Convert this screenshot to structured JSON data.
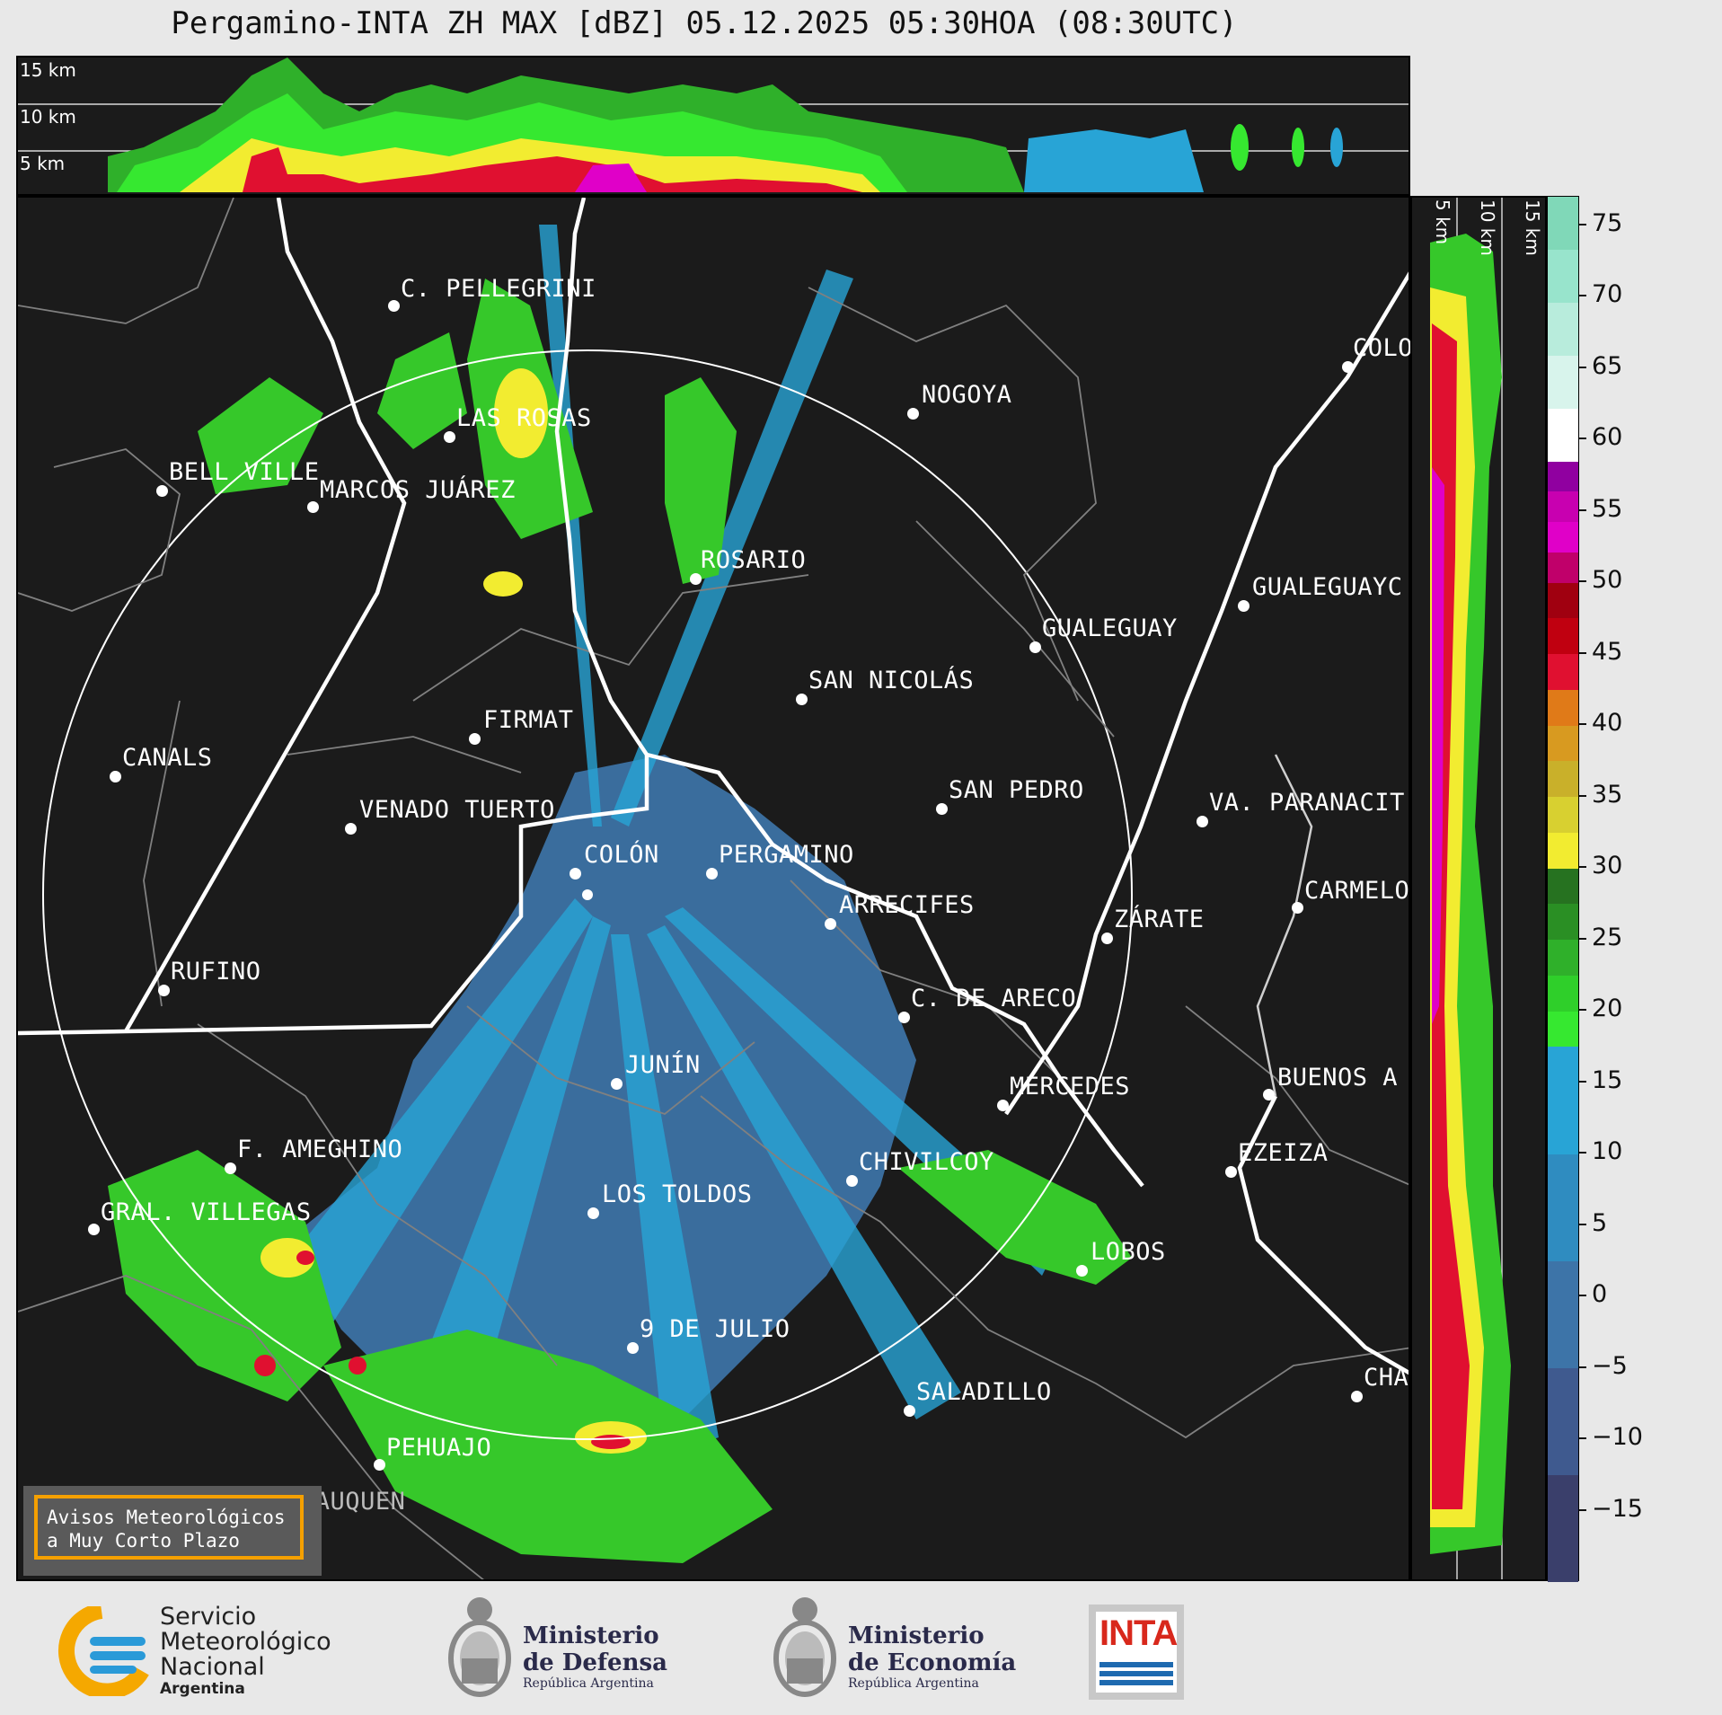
{
  "title": "Pergamino-INTA ZH MAX [dBZ] 05.12.2025 05:30HOA (08:30UTC)",
  "top_panel": {
    "altitude_labels": [
      "15 km",
      "10 km",
      "5 km"
    ]
  },
  "side_panel": {
    "altitude_labels": [
      "5 km",
      "10 km",
      "15 km"
    ]
  },
  "map": {
    "cities": [
      {
        "name": "C. PELLEGRINI"
      },
      {
        "name": "LAS ROSAS"
      },
      {
        "name": "BELL VILLE"
      },
      {
        "name": "MARCOS JUÁREZ"
      },
      {
        "name": "NOGOYA"
      },
      {
        "name": "ROSARIO"
      },
      {
        "name": "GUALEGUAY"
      },
      {
        "name": "GUALEGUAYC"
      },
      {
        "name": "COLO"
      },
      {
        "name": "SAN NICOLÁS"
      },
      {
        "name": "FIRMAT"
      },
      {
        "name": "CANALS"
      },
      {
        "name": "SAN PEDRO"
      },
      {
        "name": "VA. PARANACIT"
      },
      {
        "name": "VENADO TUERTO"
      },
      {
        "name": "COLÓN"
      },
      {
        "name": "PERGAMINO"
      },
      {
        "name": "ARRECIFES"
      },
      {
        "name": "CARMELO"
      },
      {
        "name": "ZÁRATE"
      },
      {
        "name": "RUFINO"
      },
      {
        "name": "C. DE ARECO"
      },
      {
        "name": "JUNÍN"
      },
      {
        "name": "MERCEDES"
      },
      {
        "name": "BUENOS A"
      },
      {
        "name": "F. AMEGHINO"
      },
      {
        "name": "EZEIZA"
      },
      {
        "name": "CHIVILCOY"
      },
      {
        "name": "GRAL. VILLEGAS"
      },
      {
        "name": "LOS TOLDOS"
      },
      {
        "name": "LOBOS"
      },
      {
        "name": "9 DE JULIO"
      },
      {
        "name": "CHA"
      },
      {
        "name": "SALADILLO"
      },
      {
        "name": "PEHUAJO"
      },
      {
        "name": "TRENQUE LAUQUEN"
      }
    ]
  },
  "colorbar": {
    "unit": "dBZ",
    "ticks": [
      "75",
      "70",
      "65",
      "60",
      "55",
      "50",
      "45",
      "40",
      "35",
      "30",
      "25",
      "20",
      "15",
      "10",
      "5",
      "0",
      "−5",
      "−10",
      "−15"
    ],
    "bands": [
      {
        "from": -20,
        "to": 17.5,
        "colors": [
          "#3a3f6b",
          "#3f5a8f",
          "#3d74a8",
          "#2f8cc0",
          "#28a4d6"
        ]
      },
      {
        "from": 17.5,
        "to": 30,
        "colors": [
          "#36e830",
          "#2fcf2a",
          "#2fb02a",
          "#2a8f24",
          "#267220"
        ]
      },
      {
        "from": 30,
        "to": 42.5,
        "colors": [
          "#f2ec30",
          "#d8d030",
          "#c9b02a",
          "#d89a20",
          "#e07a18"
        ]
      },
      {
        "from": 42.5,
        "to": 50,
        "colors": [
          "#e01030",
          "#c00010",
          "#a00010"
        ]
      },
      {
        "from": 50,
        "to": 58.5,
        "colors": [
          "#c0006a",
          "#e000c8",
          "#c800b0",
          "#9000a0"
        ]
      },
      {
        "from": 58.5,
        "to": 77,
        "colors": [
          "#ffffff",
          "#d8f4ec",
          "#b8ecdc",
          "#98e4cc",
          "#80d8b8"
        ]
      }
    ]
  },
  "aviso": {
    "line1": "Avisos Meteorológicos",
    "line2": "a Muy Corto Plazo"
  },
  "logos": {
    "smn": {
      "line1": "Servicio",
      "line2": "Meteorológico",
      "line3": "Nacional",
      "line4": "Argentina"
    },
    "defensa": {
      "line1": "Ministerio",
      "line2": "de Defensa",
      "line3": "República Argentina"
    },
    "economia": {
      "line1": "Ministerio",
      "line2": "de Economía",
      "line3": "República Argentina"
    },
    "inta": {
      "text": "INTA"
    }
  },
  "colors": {
    "background": "#1b1b1b",
    "weak_echo": "#3d74a8",
    "moderate_echo": "#36c82a",
    "strong_echo": "#e01030",
    "border_line": "#ffffff",
    "aviso_border": "#f5a000"
  }
}
